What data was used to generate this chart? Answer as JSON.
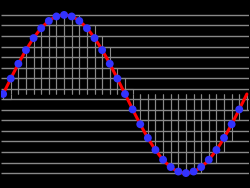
{
  "background_color": "#000000",
  "plot_bg_color": "#000000",
  "sine_color": "#ff0000",
  "dot_color": "#3333ff",
  "hgrid_color": "#888888",
  "vgrid_color": "#888888",
  "n_quantization_levels": 16,
  "amplitude": 1.0,
  "n_samples": 32,
  "figsize": [
    2.5,
    1.88
  ],
  "dpi": 100,
  "sine_lw": 2.2,
  "dot_size": 32,
  "hgrid_lw": 1.0,
  "vgrid_lw": 0.8
}
